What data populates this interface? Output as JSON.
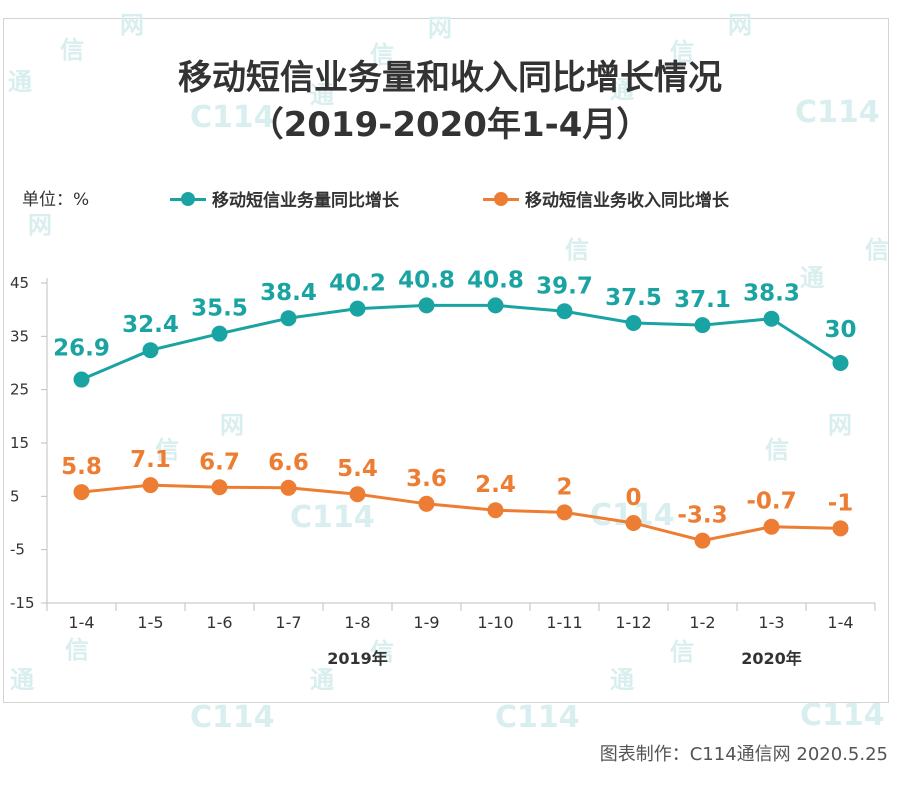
{
  "title_line1": "移动短信业务量和收入同比增长情况",
  "title_line2": "（2019-2020年1-4月）",
  "unit_label": "单位：%",
  "credit": "图表制作：C114通信网  2020.5.25",
  "watermarks": {
    "tong": "通",
    "xin": "信",
    "wang": "网",
    "logo": "C114"
  },
  "colors": {
    "teal": "#1aa3a3",
    "orange": "#ec7d32",
    "axis": "#bfbfbf",
    "text": "#333333"
  },
  "chart_data": {
    "type": "line",
    "categories": [
      "1-4",
      "1-5",
      "1-6",
      "1-7",
      "1-8",
      "1-9",
      "1-10",
      "1-11",
      "1-12",
      "1-2",
      "1-3",
      "1-4"
    ],
    "year_labels": [
      {
        "label": "2019年",
        "from": 0,
        "to": 8
      },
      {
        "label": "2020年",
        "from": 9,
        "to": 11
      }
    ],
    "ylim": [
      -15,
      45
    ],
    "yticks": [
      -15,
      -5,
      5,
      15,
      25,
      35,
      45
    ],
    "legend_position": "top",
    "series": [
      {
        "name": "移动短信业务量同比增长",
        "color": "#1aa3a3",
        "values": [
          26.9,
          32.4,
          35.5,
          38.4,
          40.2,
          40.8,
          40.8,
          39.7,
          37.5,
          37.1,
          38.3,
          30
        ],
        "labels": [
          "26.9",
          "32.4",
          "35.5",
          "38.4",
          "40.2",
          "40.8",
          "40.8",
          "39.7",
          "37.5",
          "37.1",
          "38.3",
          "30"
        ]
      },
      {
        "name": "移动短信业务收入同比增长",
        "color": "#ec7d32",
        "values": [
          5.8,
          7.1,
          6.7,
          6.6,
          5.4,
          3.6,
          2.4,
          2,
          0,
          -3.3,
          -0.7,
          -1
        ],
        "labels": [
          "5.8",
          "7.1",
          "6.7",
          "6.6",
          "5.4",
          "3.6",
          "2.4",
          "2",
          "0",
          "-3.3",
          "-0.7",
          "-1"
        ]
      }
    ]
  }
}
